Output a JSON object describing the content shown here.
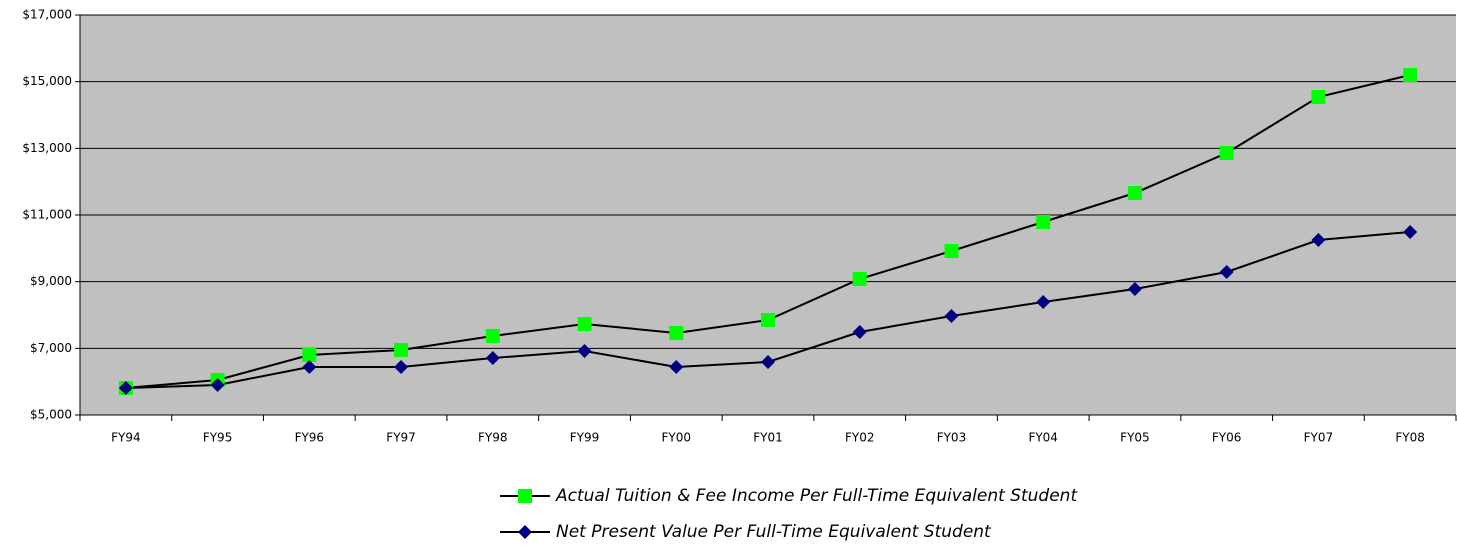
{
  "chart_data": {
    "type": "line",
    "categories": [
      "FY94",
      "FY95",
      "FY96",
      "FY97",
      "FY98",
      "FY99",
      "FY00",
      "FY01",
      "FY02",
      "FY03",
      "FY04",
      "FY05",
      "FY06",
      "FY07",
      "FY08"
    ],
    "series": [
      {
        "name": "Actual Tuition & Fee Income Per Full-Time Equivalent Student",
        "color": "#00ff00",
        "marker": "square",
        "values": [
          5810,
          6050,
          6800,
          6950,
          7370,
          7730,
          7460,
          7850,
          9080,
          9920,
          10790,
          11660,
          12860,
          14540,
          15200
        ]
      },
      {
        "name": "Net Present Value Per Full-Time Equivalent Student",
        "color": "#000080",
        "marker": "diamond",
        "values": [
          5810,
          5900,
          6440,
          6440,
          6710,
          6920,
          6440,
          6590,
          7490,
          7970,
          8390,
          8780,
          9290,
          10250,
          10490
        ]
      }
    ],
    "ylim": [
      5000,
      17000
    ],
    "yticks": [
      {
        "value": 5000,
        "label": "$5,000"
      },
      {
        "value": 7000,
        "label": "$7,000"
      },
      {
        "value": 9000,
        "label": "$9,000"
      },
      {
        "value": 11000,
        "label": "$11,000"
      },
      {
        "value": 13000,
        "label": "$13,000"
      },
      {
        "value": 15000,
        "label": "$15,000"
      },
      {
        "value": 17000,
        "label": "$17,000"
      }
    ],
    "grid": true,
    "plot_background": "#c0c0c0",
    "legend_position": "bottom"
  }
}
